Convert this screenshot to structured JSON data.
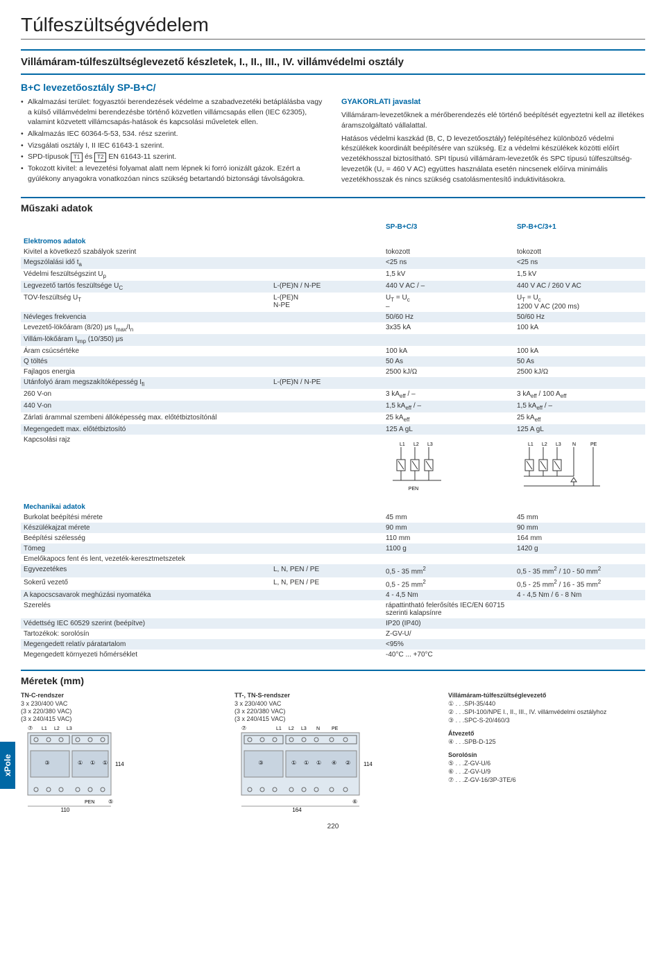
{
  "page": {
    "title": "Túlfeszültségvédelem",
    "num": "220"
  },
  "subtitle": "Villámáram-túlfeszültséglevezető készletek, I., II., III., IV. villámvédelmi osztály",
  "subtitle2": "B+C levezetőosztály SP-B+C/",
  "leftBullets": [
    "Alkalmazási terület: fogyasztói berendezések védelme a szabadvezetéki betáplálásba vagy a külső villámvédelmi berendezésbe történő közvetlen villámcsapás ellen (IEC 62305), valamint közvetett villámcsapás-hatások és kapcsolási műveletek ellen.",
    "Alkalmazás IEC 60364-5-53, 534. rész szerint.",
    "Vizsgálati osztály I, II IEC 61643-1 szerint.",
    "SPD-típusok [T1] és [T2] EN 61643-11 szerint.",
    "Tokozott kivitel: a levezetési folyamat alatt nem lépnek ki forró ionizált gázok. Ezért a gyúlékony anyagokra vonatkozóan nincs szükség betartandó biztonsági távolságokra."
  ],
  "practical": {
    "heading": "GYAKORLATI javaslat",
    "body": "Villámáram-levezetőknek a mérőberendezés elé történő beépítését egyeztetni kell az illetékes áramszolgáltató vállalattal.\nHatásos védelmi kaszkád (B, C, D levezetőosztály) felépítéséhez különböző védelmi készülékek koordinált beépítésére van szükség. Ez a védelmi készülékek közötti előírt vezetékhosszal biztosítható. SPI típusú villámáram-levezetők és SPC típusú túlfeszültség-levezetők (U꜀ = 460 V AC) együttes használata esetén nincsenek előírva minimális vezetékhosszak és nincs szükség csatolásmentesítő induktivitásokra."
  },
  "tech_heading": "Műszaki adatok",
  "tbl": {
    "colheads": [
      "",
      "",
      "SP-B+C/3",
      "SP-B+C/3+1"
    ],
    "groups": [
      {
        "head": "Elektromos adatok",
        "rows": [
          [
            "Kivitel a következő szabályok szerint",
            "",
            "tokozott",
            "tokozott"
          ],
          [
            "Megszólalási idő t_a",
            "",
            "<25 ns",
            "<25 ns"
          ],
          [
            "Védelmi feszültségszint U_p",
            "",
            "1,5 kV",
            "1,5 kV"
          ],
          [
            "Legvezető tartós feszültsége U_C",
            "L-(PE)N / N-PE",
            "440 V AC / –",
            "440 V AC / 260 V AC"
          ],
          [
            "TOV-feszültség U_T",
            "L-(PE)N\nN-PE",
            "U_T = U_c\n–",
            "U_T = U_c\n1200 V AC (200 ms)"
          ],
          [
            "Névleges frekvencia",
            "",
            "50/60 Hz",
            "50/60 Hz"
          ],
          [
            "Levezető-lökőáram (8/20) μs I_max/I_n",
            "",
            "3x35 kA",
            "100 kA"
          ],
          [
            "Villám-lökőáram I_imp (10/350) μs",
            "",
            "",
            ""
          ],
          [
            "    Áram csúcsértéke",
            "",
            "100 kA",
            "100 kA"
          ],
          [
            "    Q töltés",
            "",
            "50 As",
            "50 As"
          ],
          [
            "    Fajlagos energia",
            "",
            "2500 kJ/Ω",
            "2500 kJ/Ω"
          ],
          [
            "Utánfolyó áram megszakítóképesség I_fi",
            "L-(PE)N / N-PE",
            "",
            ""
          ],
          [
            "    260 V-on",
            "",
            "3 kA_eff / –",
            "3 kA_eff / 100 A_eff"
          ],
          [
            "    440 V-on",
            "",
            "1,5 kA_eff / –",
            "1,5 kA_eff / –"
          ],
          [
            "Zárlati árammal szembeni állóképesség max. előtétbiztosítónál",
            "",
            "25 kA_eff",
            "25 kA_eff"
          ],
          [
            "Megengedett max. előtétbiztosító",
            "",
            "125 A gL",
            "125 A gL"
          ],
          [
            "Kapcsolási rajz",
            "",
            "DIAG3",
            "DIAG4"
          ]
        ]
      },
      {
        "head": "Mechanikai adatok",
        "rows": [
          [
            "Burkolat beépítési mérete",
            "",
            "45 mm",
            "45 mm"
          ],
          [
            "Készülékajzat mérete",
            "",
            "90 mm",
            "90 mm"
          ],
          [
            "Beépítési szélesség",
            "",
            "110 mm",
            "164 mm"
          ],
          [
            "Tömeg",
            "",
            "1100 g",
            "1420 g"
          ],
          [
            "Emelőkapocs fent és lent, vezeték-keresztmetszetek",
            "",
            "",
            ""
          ],
          [
            "    Egyvezetékes",
            "L, N, PEN / PE",
            "0,5 - 35 mm²",
            "0,5 - 35 mm² / 10 - 50 mm²"
          ],
          [
            "    Sokerű vezető",
            "L, N, PEN / PE",
            "0,5 - 25 mm²",
            "0,5 - 25 mm² / 16 - 35 mm²"
          ],
          [
            "A kapocscsavarok meghúzási nyomatéka",
            "",
            "4 - 4,5 Nm",
            "4 - 4,5 Nm / 6 - 8 Nm"
          ],
          [
            "Szerelés",
            "",
            "rápattintható felerősítés IEC/EN 60715 szerinti kalapsínre",
            ""
          ],
          [
            "Védettség IEC 60529 szerint (beépítve)",
            "",
            "IP20 (IP40)",
            ""
          ],
          [
            "Tartozékok: sorolósín",
            "",
            "Z-GV-U/",
            ""
          ],
          [
            "Megengedett relatív páratartalom",
            "",
            "<95%",
            ""
          ],
          [
            "Megengedett környezeti hőmérséklet",
            "",
            "-40°C ... +70°C",
            ""
          ]
        ]
      }
    ]
  },
  "dims_heading": "Méretek (mm)",
  "dims": {
    "sys1": {
      "title": "TN-C-rendszer",
      "lines": [
        "3 x 230/400 VAC",
        "(3 x 220/380 VAC)",
        "(3 x 240/415 VAC)"
      ],
      "labels": [
        "L1",
        "L2",
        "L3"
      ],
      "w": "110",
      "h": "114",
      "pen": "PEN"
    },
    "sys2": {
      "title": "TT-, TN-S-rendszer",
      "lines": [
        "3 x 230/400 VAC",
        "(3 x 220/380 VAC)",
        "(3 x 240/415 VAC)"
      ],
      "labels": [
        "L1",
        "L2",
        "L3",
        "N",
        "PE"
      ],
      "w": "164",
      "h": "114"
    },
    "legend": {
      "title": "Villámáram-túlfeszültséglevezető",
      "items": [
        "① . . .SPI-35/440",
        "② . . .SPI-100/NPE I., II., III., IV. villámvédelmi osztályhoz",
        "③ . . .SPC-S-20/460/3"
      ],
      "title2": "Átvezető",
      "items2": [
        "④ . . .SPB-D-125"
      ],
      "title3": "Sorolósín",
      "items3": [
        "⑤ . . .Z-GV-U/6",
        "⑥ . . .Z-GV-U/9",
        "⑦ . . .Z-GV-16/3P-3TE/6"
      ]
    }
  },
  "sidetab": "xPole",
  "colors": {
    "accent": "#0068a5",
    "stripe": "#e6eef5",
    "text": "#333333"
  }
}
